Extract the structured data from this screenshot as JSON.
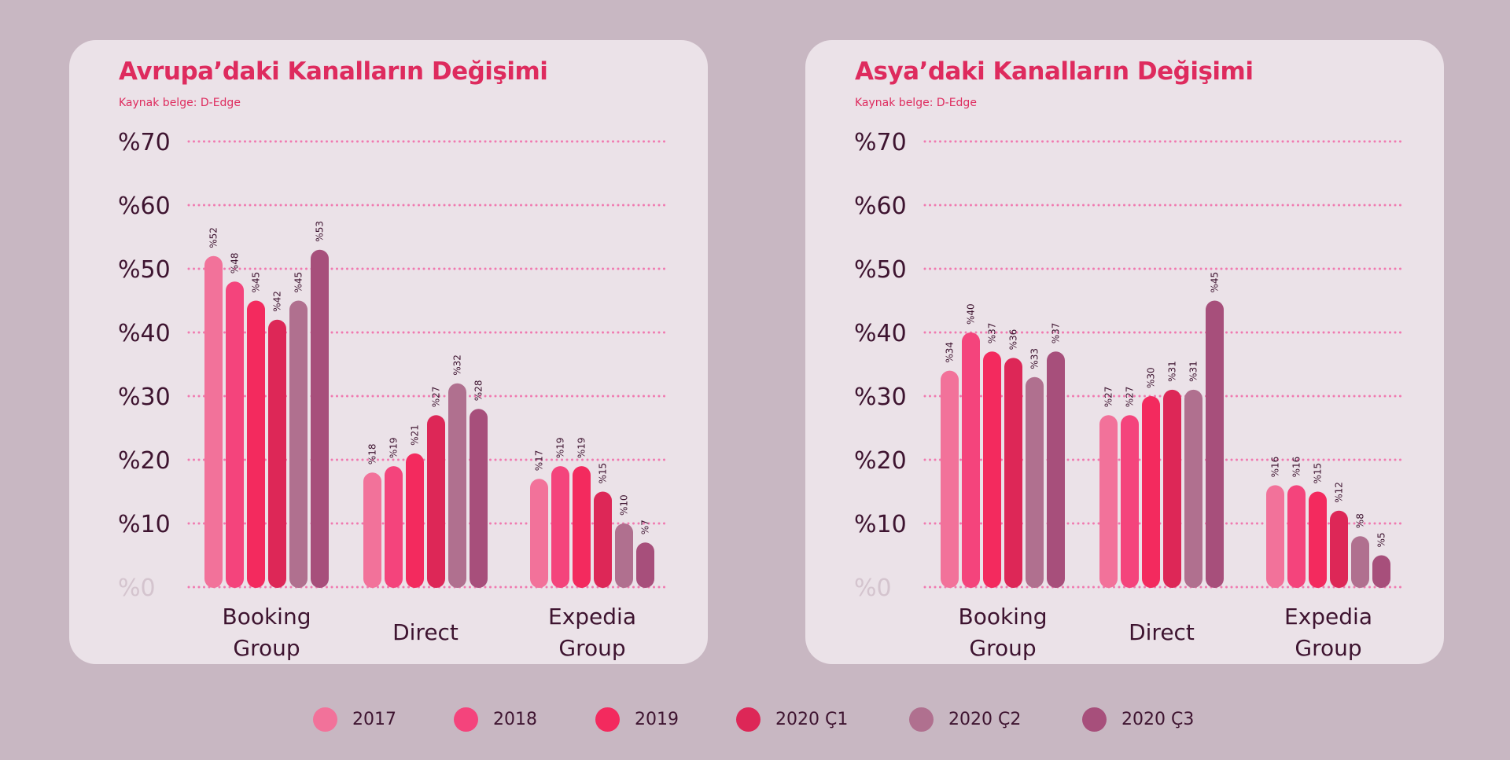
{
  "colors": {
    "background": "#c8b7c2",
    "panel": "#ebe2e8",
    "title": "#de2b5e",
    "text": "#3e1430",
    "gridline": "#f07ab0",
    "zero_label": "#d4c4ce",
    "series": [
      "#f2729a",
      "#f4447c",
      "#f32a5e",
      "#dd2757",
      "#b0708f",
      "#a74f7b"
    ]
  },
  "legend": [
    {
      "label": "2017"
    },
    {
      "label": "2018"
    },
    {
      "label": "2019"
    },
    {
      "label": "2020 Ç1"
    },
    {
      "label": "2020 Ç2"
    },
    {
      "label": "2020 Ç3"
    }
  ],
  "chart_data": [
    {
      "type": "bar",
      "title": "Avrupa’daki Kanalların Değişimi",
      "subtitle": "Kaynak belge:  D-Edge",
      "y_ticks": [
        "%0",
        "%10",
        "%20",
        "%30",
        "%40",
        "%50",
        "%60",
        "%70"
      ],
      "ylim": [
        0,
        70
      ],
      "grid": true,
      "categories": [
        {
          "lines": [
            "Booking",
            "Group"
          ]
        },
        {
          "lines": [
            "Direct"
          ]
        },
        {
          "lines": [
            "Expedia",
            "Group"
          ]
        }
      ],
      "series": [
        {
          "name": "2017",
          "values": [
            52,
            18,
            17
          ],
          "labels": [
            "%52",
            "%18",
            "%17"
          ]
        },
        {
          "name": "2018",
          "values": [
            48,
            19,
            19
          ],
          "labels": [
            "%48",
            "%19",
            "%19"
          ]
        },
        {
          "name": "2019",
          "values": [
            45,
            21,
            19
          ],
          "labels": [
            "%45",
            "%21",
            "%19"
          ]
        },
        {
          "name": "2020 Ç1",
          "values": [
            42,
            27,
            15
          ],
          "labels": [
            "%42",
            "%27",
            "%15"
          ]
        },
        {
          "name": "2020 Ç2",
          "values": [
            45,
            32,
            10
          ],
          "labels": [
            "%45",
            "%32",
            "%10"
          ]
        },
        {
          "name": "2020 Ç3",
          "values": [
            53,
            28,
            7
          ],
          "labels": [
            "%53",
            "%28",
            "%7"
          ]
        }
      ]
    },
    {
      "type": "bar",
      "title": "Asya’daki Kanalların Değişimi",
      "subtitle": "Kaynak belge:  D-Edge",
      "y_ticks": [
        "%0",
        "%10",
        "%20",
        "%30",
        "%40",
        "%50",
        "%60",
        "%70"
      ],
      "ylim": [
        0,
        70
      ],
      "grid": true,
      "categories": [
        {
          "lines": [
            "Booking",
            "Group"
          ]
        },
        {
          "lines": [
            "Direct"
          ]
        },
        {
          "lines": [
            "Expedia",
            "Group"
          ]
        }
      ],
      "series": [
        {
          "name": "2017",
          "values": [
            34,
            27,
            16
          ],
          "labels": [
            "%34",
            "%27",
            "%16"
          ]
        },
        {
          "name": "2018",
          "values": [
            40,
            27,
            16
          ],
          "labels": [
            "%40",
            "%27",
            "%16"
          ]
        },
        {
          "name": "2019",
          "values": [
            37,
            30,
            15
          ],
          "labels": [
            "%37",
            "%30",
            "%15"
          ]
        },
        {
          "name": "2020 Ç1",
          "values": [
            36,
            31,
            12
          ],
          "labels": [
            "%36",
            "%31",
            "%12"
          ]
        },
        {
          "name": "2020 Ç2",
          "values": [
            33,
            31,
            8
          ],
          "labels": [
            "%33",
            "%31",
            "%8"
          ]
        },
        {
          "name": "2020 Ç3",
          "values": [
            37,
            45,
            5
          ],
          "labels": [
            "%37",
            "%45",
            "%5"
          ]
        }
      ]
    }
  ]
}
